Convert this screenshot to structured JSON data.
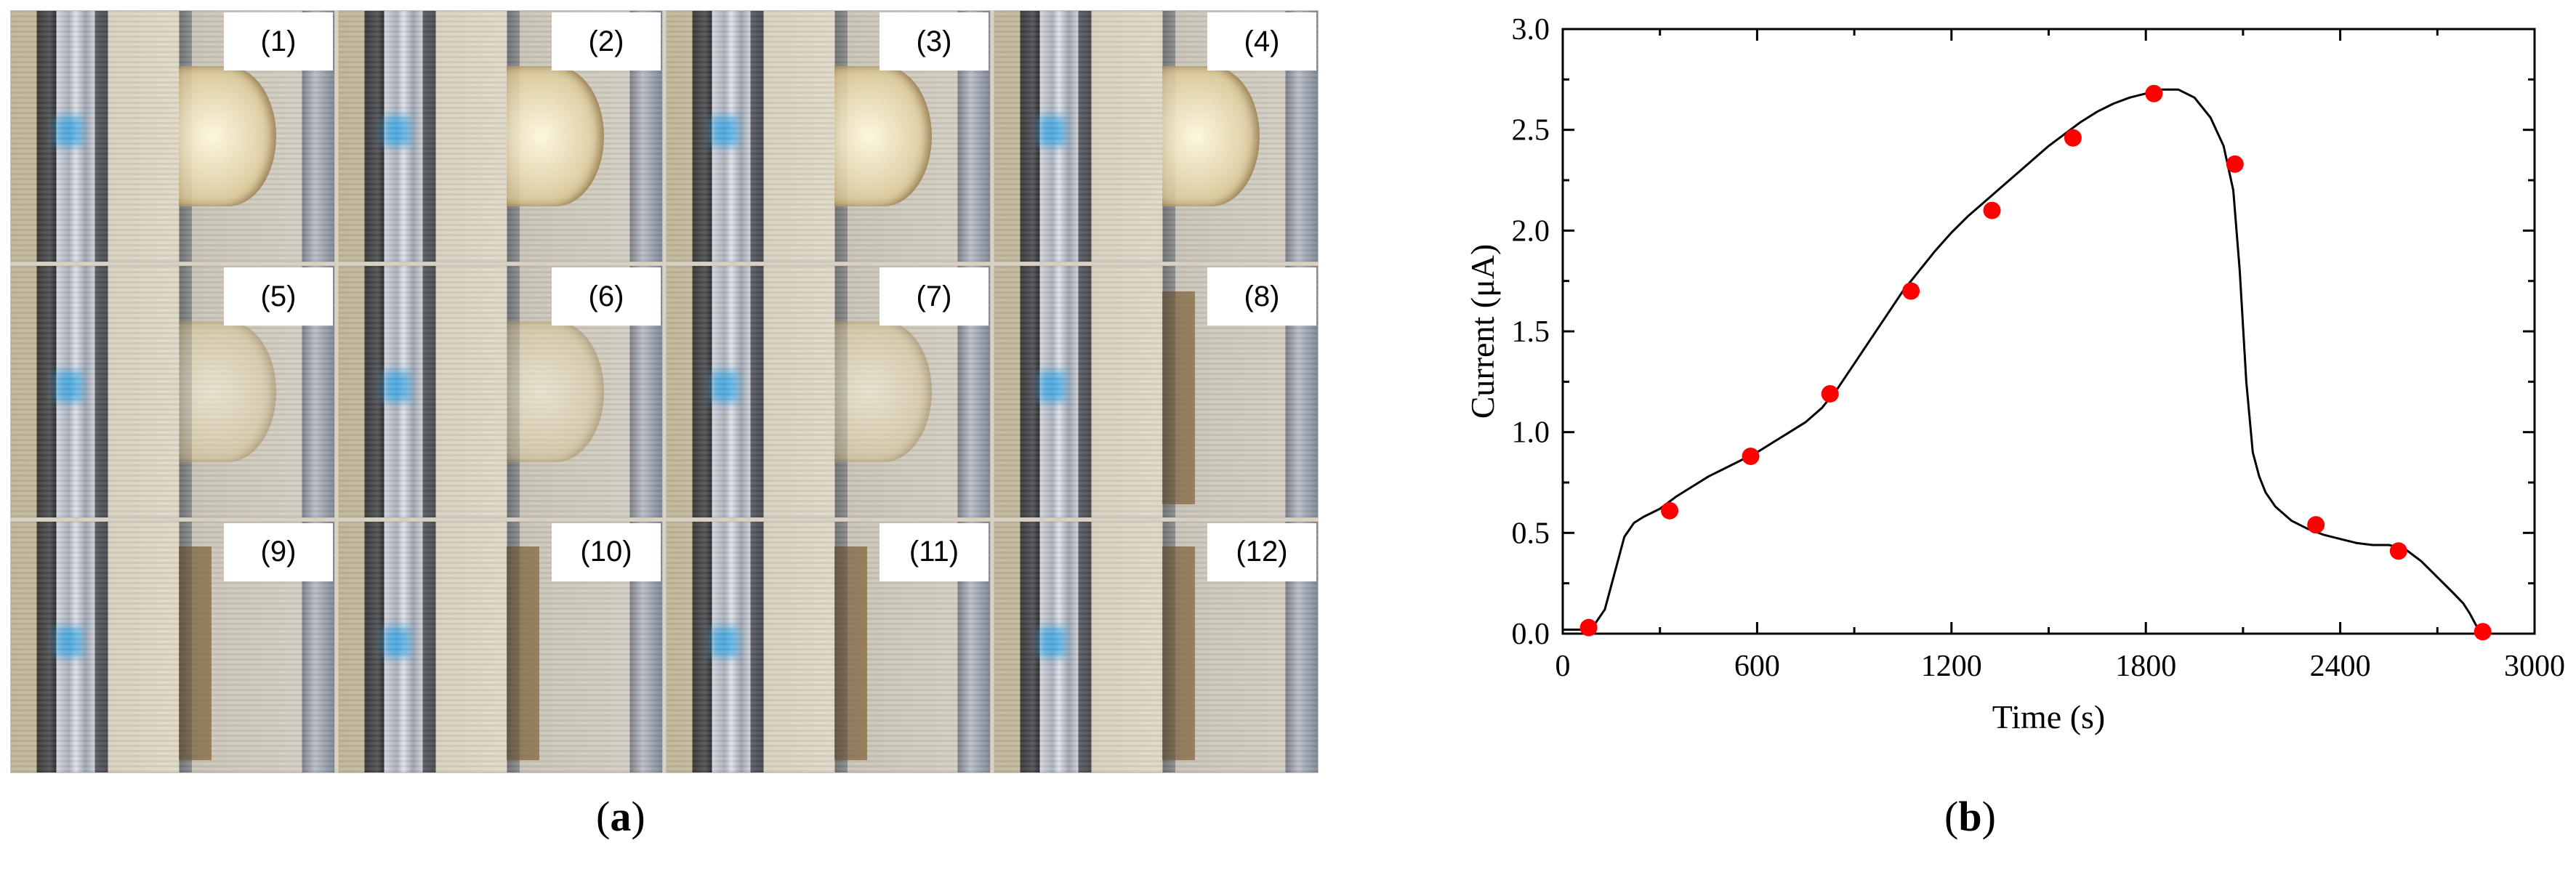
{
  "panel_a": {
    "label_letter": "a",
    "frames": [
      {
        "label": "(1)"
      },
      {
        "label": "(2)"
      },
      {
        "label": "(3)"
      },
      {
        "label": "(4)"
      },
      {
        "label": "(5)"
      },
      {
        "label": "(6)"
      },
      {
        "label": "(7)"
      },
      {
        "label": "(8)"
      },
      {
        "label": "(9)"
      },
      {
        "label": "(10)"
      },
      {
        "label": "(11)"
      },
      {
        "label": "(12)"
      }
    ]
  },
  "panel_b": {
    "label_letter": "b"
  },
  "chart_data": {
    "type": "line",
    "xlabel": "Time (s)",
    "ylabel": "Current (μA)",
    "xlim": [
      0,
      3000
    ],
    "ylim": [
      0,
      3.0
    ],
    "xticks": [
      "0",
      "600",
      "1200",
      "1800",
      "2400",
      "3000"
    ],
    "yticks": [
      "0.0",
      "0.5",
      "1.0",
      "1.5",
      "2.0",
      "2.5",
      "3.0"
    ],
    "grid": false,
    "colors": {
      "line": "#000000",
      "markers": "#ff0000"
    },
    "series": [
      {
        "kind": "line",
        "x": [
          0,
          50,
          70,
          100,
          130,
          160,
          190,
          220,
          250,
          300,
          350,
          400,
          450,
          500,
          550,
          600,
          650,
          700,
          750,
          800,
          850,
          900,
          950,
          1000,
          1050,
          1100,
          1150,
          1200,
          1250,
          1300,
          1350,
          1400,
          1450,
          1500,
          1550,
          1600,
          1650,
          1700,
          1750,
          1800,
          1850,
          1900,
          1950,
          2000,
          2040,
          2070,
          2090,
          2110,
          2130,
          2150,
          2170,
          2200,
          2250,
          2300,
          2350,
          2400,
          2450,
          2500,
          2550,
          2600,
          2650,
          2700,
          2750,
          2780,
          2800,
          2820,
          2840
        ],
        "y": [
          0.02,
          0.02,
          0.02,
          0.05,
          0.12,
          0.3,
          0.48,
          0.55,
          0.58,
          0.62,
          0.68,
          0.73,
          0.78,
          0.82,
          0.86,
          0.9,
          0.95,
          1.0,
          1.05,
          1.12,
          1.22,
          1.34,
          1.46,
          1.58,
          1.7,
          1.8,
          1.9,
          1.99,
          2.07,
          2.14,
          2.21,
          2.28,
          2.35,
          2.42,
          2.48,
          2.54,
          2.59,
          2.63,
          2.66,
          2.68,
          2.7,
          2.7,
          2.66,
          2.56,
          2.42,
          2.2,
          1.8,
          1.25,
          0.9,
          0.78,
          0.7,
          0.63,
          0.56,
          0.52,
          0.49,
          0.47,
          0.45,
          0.44,
          0.44,
          0.42,
          0.36,
          0.28,
          0.2,
          0.15,
          0.1,
          0.04,
          0.01
        ]
      },
      {
        "kind": "markers",
        "x": [
          80,
          330,
          580,
          825,
          1075,
          1325,
          1575,
          1825,
          2075,
          2325,
          2580,
          2840
        ],
        "y": [
          0.03,
          0.61,
          0.88,
          1.19,
          1.7,
          2.1,
          2.46,
          2.68,
          2.33,
          0.54,
          0.41,
          0.01
        ]
      }
    ]
  }
}
